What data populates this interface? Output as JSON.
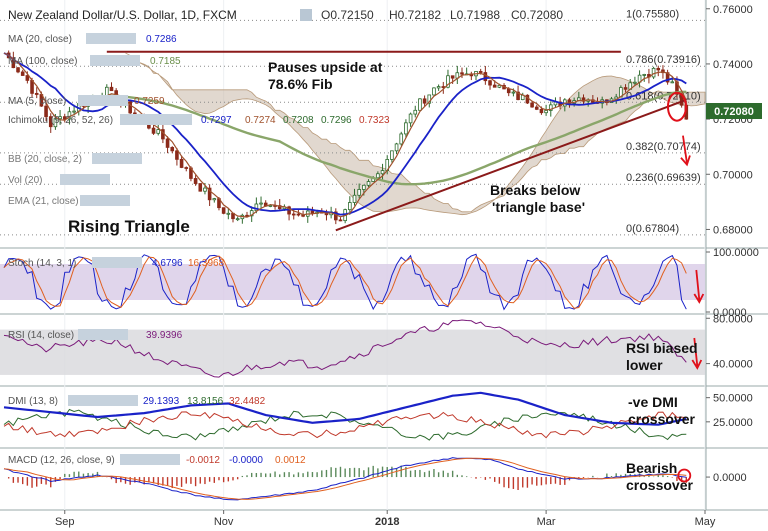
{
  "header": {
    "title": "New Zealand Dollar/U.S. Dollar, 1D, FXCM",
    "ohlc": {
      "o": "O0.72150",
      "h": "H0.72182",
      "l": "L0.71988",
      "c": "C0.72080"
    },
    "price_badge": "0.72080"
  },
  "colors": {
    "candle_up": "#2e6b2e",
    "candle_down": "#8b2a1a",
    "ma20": "#1a22c8",
    "ma100": "#8aa66a",
    "ma5": "#a0522d",
    "trend": "#8b1a1a",
    "annot_red": "#e0101a",
    "ichimoku_cloud": "#c9b8a8",
    "ichimoku_green": "#b8cfa8",
    "stoch_band": "#d8cbe6",
    "rsi_band": "#d8d8dc",
    "price_badge": "#2d6b2d"
  },
  "indicators": {
    "ma20": {
      "label": "MA (20, close)",
      "value": "0.7286"
    },
    "ma100": {
      "label": "MA (100, close)",
      "value": "0.7185"
    },
    "ma5": {
      "label": "MA (5, close)",
      "value": "0.7259"
    },
    "ichimoku": {
      "label": "Ichimoku (9, 26, 52, 26)",
      "values": [
        "0.7297",
        "0.7274",
        "0.7208",
        "0.7296",
        "0.7323"
      ]
    },
    "bb": {
      "label": "BB (20, close, 2)"
    },
    "vol": {
      "label": "Vol (20)"
    },
    "ema": {
      "label": "EMA (21, close)"
    }
  },
  "annotations": {
    "pauses": "Pauses upside at",
    "fib": "78.6% Fib",
    "breaks": "Breaks below",
    "triangle": "'triangle base'",
    "rising": "Rising Triangle",
    "rsi1": "RSI biased",
    "rsi2": "lower",
    "dmi1": "-ve DMI",
    "dmi2": "crossover",
    "macd1": "Bearish",
    "macd2": "crossover"
  },
  "chart_data": {
    "type": "line",
    "title": "New Zealand Dollar/U.S. Dollar, 1D, FXCM",
    "x_ticks": [
      "Sep",
      "Nov",
      "2018",
      "Mar",
      "May"
    ],
    "x_ticks_index": [
      13,
      47,
      82,
      116,
      150
    ],
    "main_ylim": [
      0.674,
      0.761
    ],
    "main_y_ticks": [
      "0.76000",
      "0.74000",
      "0.72000",
      "0.70000",
      "0.68000"
    ],
    "main_y_ticks_values": [
      0.76,
      0.74,
      0.72,
      0.7,
      0.68
    ],
    "fib_levels": [
      {
        "label": "1(0.75580)",
        "value": 0.7558
      },
      {
        "label": "0.786(0.73916)",
        "value": 0.73916
      },
      {
        "label": "0.618(0.72610)",
        "value": 0.7261
      },
      {
        "label": "0.382(0.70774)",
        "value": 0.70774
      },
      {
        "label": "0.236(0.69639)",
        "value": 0.69639
      },
      {
        "label": "0(0.67804)",
        "value": 0.67804
      }
    ],
    "resistance_level": 0.7444,
    "triangle_base": {
      "start": [
        71,
        0.6797
      ],
      "end": [
        146,
        0.727
      ]
    },
    "price_close_keypoints": [
      [
        0,
        0.744
      ],
      [
        5,
        0.734
      ],
      [
        10,
        0.718
      ],
      [
        16,
        0.725
      ],
      [
        22,
        0.73
      ],
      [
        28,
        0.722
      ],
      [
        34,
        0.713
      ],
      [
        40,
        0.699
      ],
      [
        46,
        0.688
      ],
      [
        50,
        0.683
      ],
      [
        55,
        0.691
      ],
      [
        59,
        0.687
      ],
      [
        64,
        0.685
      ],
      [
        68,
        0.687
      ],
      [
        72,
        0.684
      ],
      [
        76,
        0.693
      ],
      [
        80,
        0.7
      ],
      [
        84,
        0.712
      ],
      [
        88,
        0.724
      ],
      [
        92,
        0.731
      ],
      [
        96,
        0.735
      ],
      [
        100,
        0.737
      ],
      [
        104,
        0.734
      ],
      [
        108,
        0.729
      ],
      [
        112,
        0.727
      ],
      [
        116,
        0.723
      ],
      [
        120,
        0.727
      ],
      [
        124,
        0.728
      ],
      [
        128,
        0.726
      ],
      [
        132,
        0.731
      ],
      [
        136,
        0.736
      ],
      [
        140,
        0.738
      ],
      [
        143,
        0.732
      ],
      [
        146,
        0.7208
      ]
    ],
    "stoch": {
      "label": "Stoch (14, 3, 1)",
      "k": "4.6796",
      "d": "16.3968",
      "ylim": [
        0,
        100
      ],
      "ticks": [
        "100.0000",
        "0.0000"
      ],
      "ticks_values": [
        100,
        0
      ],
      "band": [
        20,
        80
      ]
    },
    "rsi": {
      "label": "RSI (14, close)",
      "value": "39.9396",
      "ylim": [
        22,
        82
      ],
      "ticks": [
        "80.0000",
        "40.0000"
      ],
      "ticks_values": [
        80,
        40
      ],
      "band": [
        30,
        70
      ],
      "keypoints": [
        [
          0,
          68
        ],
        [
          8,
          52
        ],
        [
          16,
          58
        ],
        [
          24,
          60
        ],
        [
          32,
          45
        ],
        [
          40,
          35
        ],
        [
          46,
          28
        ],
        [
          52,
          36
        ],
        [
          60,
          42
        ],
        [
          68,
          38
        ],
        [
          76,
          48
        ],
        [
          84,
          62
        ],
        [
          92,
          72
        ],
        [
          100,
          78
        ],
        [
          108,
          68
        ],
        [
          116,
          55
        ],
        [
          124,
          58
        ],
        [
          132,
          62
        ],
        [
          140,
          64
        ],
        [
          146,
          40
        ]
      ]
    },
    "dmi": {
      "label": "DMI (13, 8)",
      "values": [
        "29.1393",
        "13.8156",
        "32.4482"
      ],
      "ylim": [
        0,
        60
      ],
      "ticks": [
        "50.0000",
        "25.0000"
      ],
      "ticks_values": [
        50,
        25
      ],
      "adx_keypoints": [
        [
          0,
          40
        ],
        [
          10,
          35
        ],
        [
          20,
          30
        ],
        [
          30,
          34
        ],
        [
          40,
          42
        ],
        [
          48,
          44
        ],
        [
          56,
          32
        ],
        [
          66,
          24
        ],
        [
          76,
          28
        ],
        [
          86,
          40
        ],
        [
          96,
          52
        ],
        [
          102,
          55
        ],
        [
          110,
          48
        ],
        [
          120,
          32
        ],
        [
          130,
          24
        ],
        [
          140,
          22
        ],
        [
          146,
          28
        ]
      ]
    },
    "macd": {
      "label": "MACD (12, 26, close, 9)",
      "values": [
        "-0.0012",
        "-0.0000",
        "0.0012"
      ],
      "ylim": [
        -0.016,
        0.014
      ],
      "ticks": [
        "0.0000"
      ],
      "ticks_values": [
        0
      ],
      "macd_keypoints": [
        [
          0,
          0.004
        ],
        [
          10,
          -0.002
        ],
        [
          20,
          0.001
        ],
        [
          30,
          -0.003
        ],
        [
          40,
          -0.009
        ],
        [
          48,
          -0.012
        ],
        [
          56,
          -0.01
        ],
        [
          66,
          -0.007
        ],
        [
          76,
          -0.001
        ],
        [
          86,
          0.006
        ],
        [
          96,
          0.01
        ],
        [
          104,
          0.009
        ],
        [
          112,
          0.003
        ],
        [
          120,
          -0.001
        ],
        [
          128,
          -0.0005
        ],
        [
          136,
          0.001
        ],
        [
          142,
          0.0015
        ],
        [
          146,
          -0.0005
        ]
      ]
    }
  }
}
